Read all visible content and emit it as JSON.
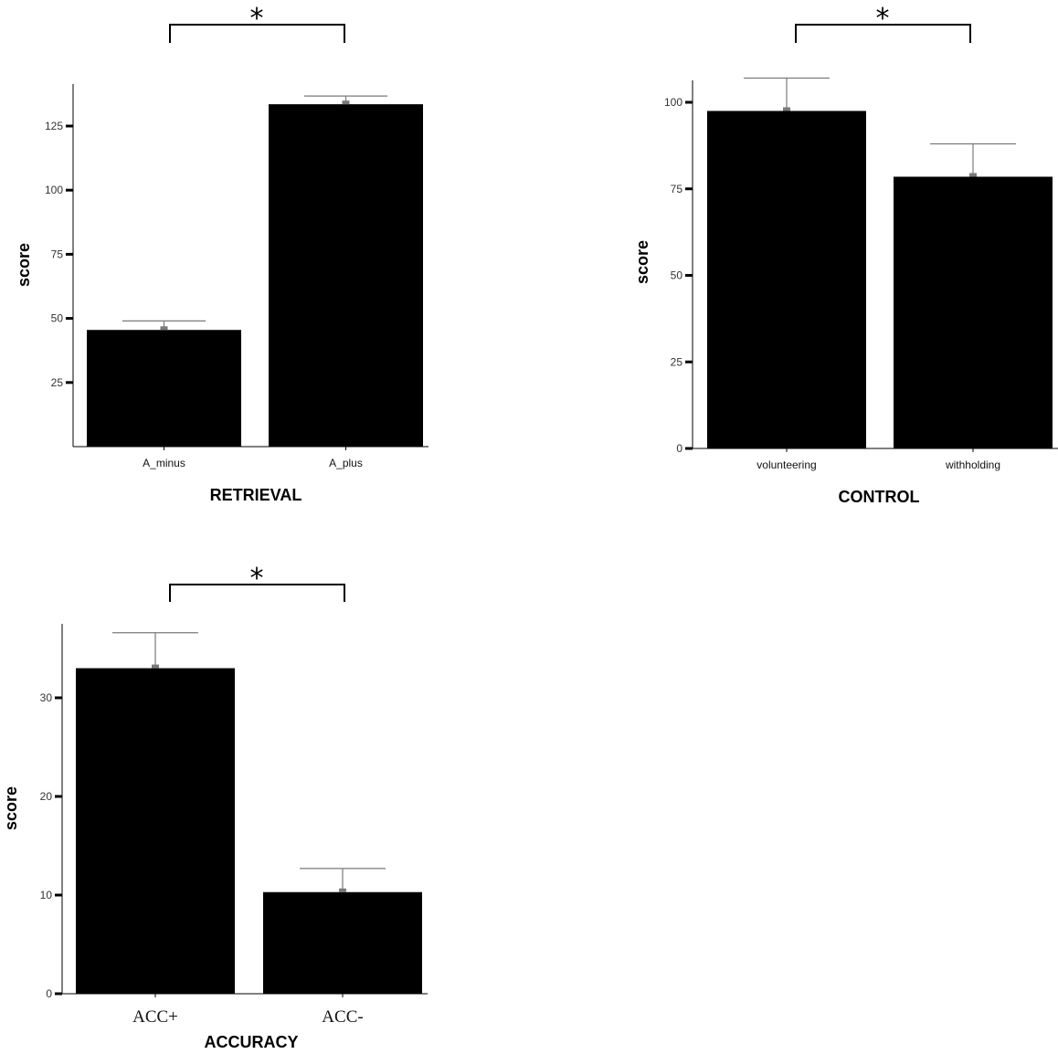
{
  "chart_data": [
    {
      "type": "bar",
      "categories": [
        "A_minus",
        "A_plus"
      ],
      "values": [
        45.5,
        133.5
      ],
      "errors": [
        3.5,
        3.2
      ],
      "xlabel": "RETRIEVAL",
      "ylabel": "score",
      "ylim": [
        0,
        140
      ],
      "yticks": [
        25,
        50,
        75,
        100,
        125
      ],
      "significance": "*",
      "grid": false
    },
    {
      "type": "bar",
      "categories": [
        "volunteering",
        "withholding"
      ],
      "values": [
        97.5,
        78.5
      ],
      "errors": [
        9.5,
        9.5
      ],
      "xlabel": "CONTROL",
      "ylabel": "score",
      "ylim": [
        0,
        107
      ],
      "yticks": [
        0,
        25,
        50,
        75,
        100
      ],
      "significance": "*",
      "grid": false
    },
    {
      "type": "bar",
      "categories": [
        "ACC+",
        "ACC-"
      ],
      "values": [
        33,
        10.3
      ],
      "errors": [
        3.6,
        2.4
      ],
      "xlabel": "ACCURACY",
      "ylabel": "score",
      "ylim": [
        0,
        37.5
      ],
      "yticks": [
        0,
        10,
        20,
        30
      ],
      "significance": "*",
      "grid": false
    }
  ]
}
